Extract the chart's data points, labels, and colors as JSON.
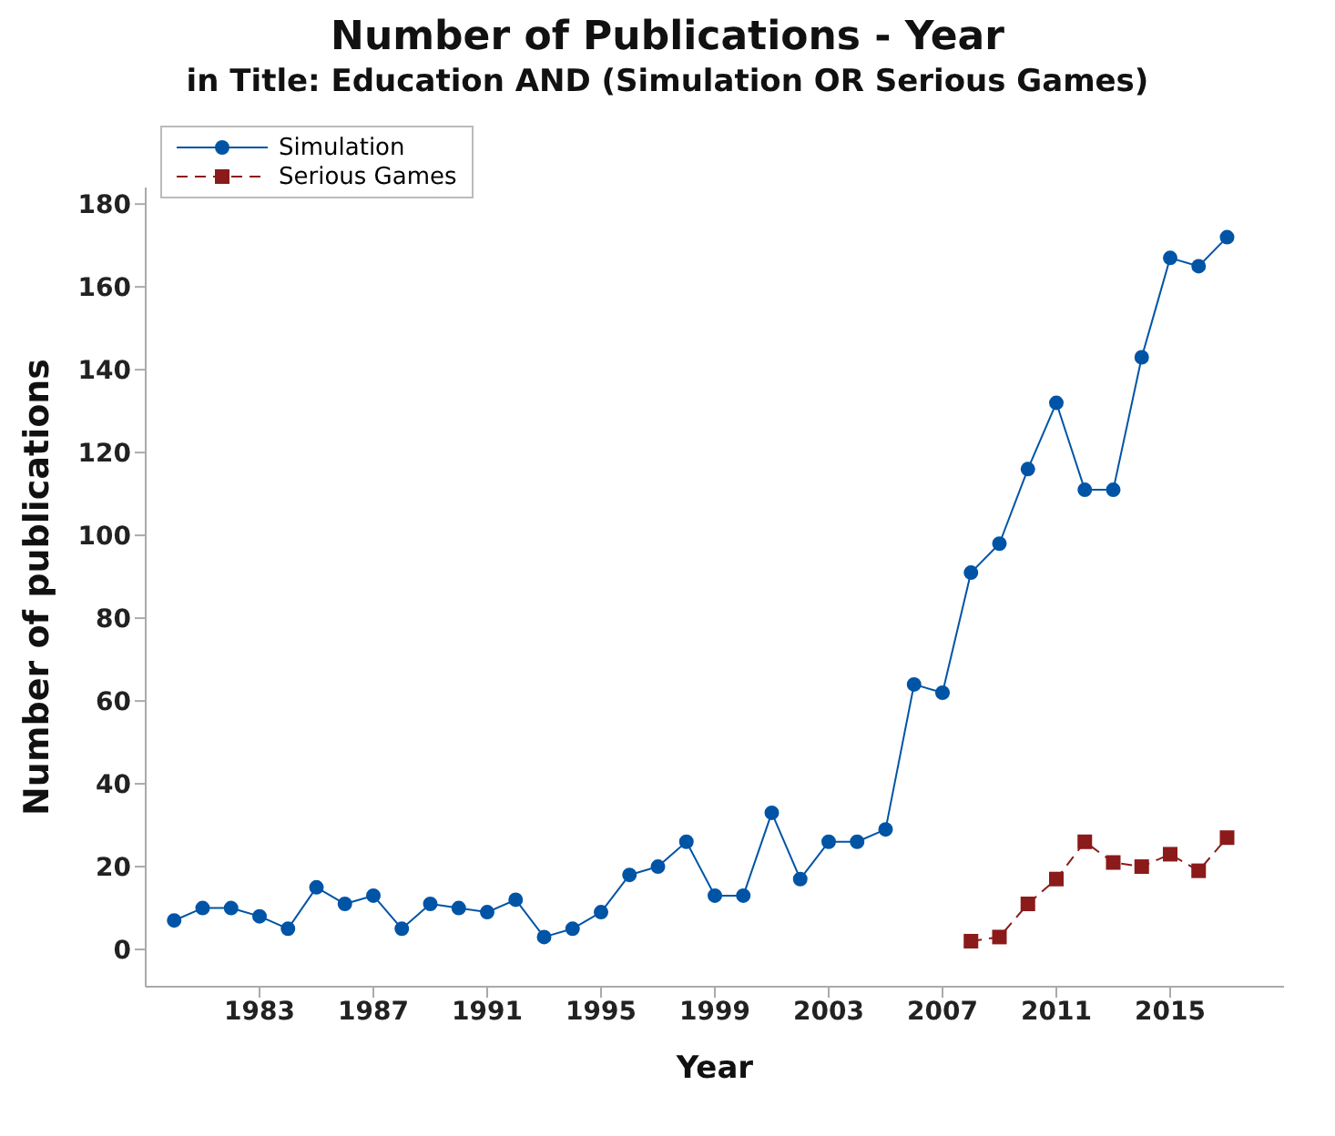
{
  "chart_data": {
    "type": "line",
    "title": "Number of Publications - Year",
    "subtitle": "in Title: Education AND (Simulation OR Serious Games)",
    "xlabel": "Year",
    "ylabel": "Number of publications",
    "xlim": [
      1979,
      2019
    ],
    "xticks": [
      1983,
      1987,
      1991,
      1995,
      1999,
      2003,
      2007,
      2011,
      2015
    ],
    "ylim": [
      -9,
      184
    ],
    "yticks": [
      0,
      20,
      40,
      60,
      80,
      100,
      120,
      140,
      160,
      180
    ],
    "grid": false,
    "legend": "top left",
    "series": [
      {
        "name": "Simulation",
        "color": "#0054a6",
        "marker": "circle",
        "line_style": "solid",
        "x": [
          1980,
          1981,
          1982,
          1983,
          1984,
          1985,
          1986,
          1987,
          1988,
          1989,
          1990,
          1991,
          1992,
          1993,
          1994,
          1995,
          1996,
          1997,
          1998,
          1999,
          2000,
          2001,
          2002,
          2003,
          2004,
          2005,
          2006,
          2007,
          2008,
          2009,
          2010,
          2011,
          2012,
          2013,
          2014,
          2015,
          2016,
          2017
        ],
        "values": [
          7,
          10,
          10,
          8,
          5,
          15,
          11,
          13,
          5,
          11,
          10,
          9,
          12,
          3,
          5,
          9,
          18,
          20,
          26,
          13,
          13,
          33,
          17,
          26,
          26,
          29,
          64,
          62,
          91,
          98,
          116,
          132,
          111,
          111,
          143,
          167,
          165,
          172
        ]
      },
      {
        "name": "Serious Games",
        "color": "#8b1a1a",
        "marker": "square",
        "line_style": "dashed",
        "x": [
          2008,
          2009,
          2010,
          2011,
          2012,
          2013,
          2014,
          2015,
          2016,
          2017
        ],
        "values": [
          2,
          3,
          11,
          17,
          26,
          21,
          20,
          23,
          19,
          27
        ]
      }
    ]
  }
}
